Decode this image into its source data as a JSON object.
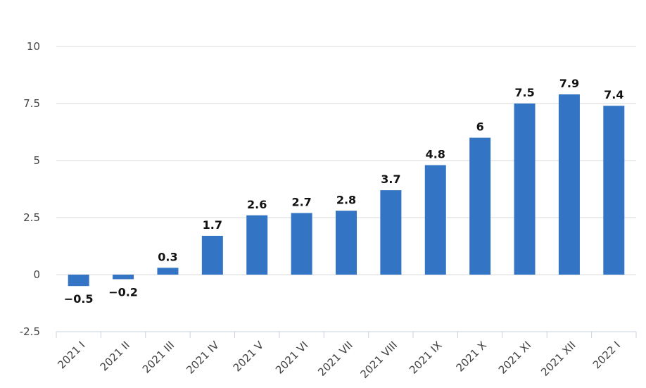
{
  "chart_data": {
    "type": "bar",
    "categories": [
      "2021 I",
      "2021 II",
      "2021 III",
      "2021 IV",
      "2021 V",
      "2021 VI",
      "2021 VII",
      "2021 VIII",
      "2021 IX",
      "2021 X",
      "2021 XI",
      "2021 XII",
      "2022 I"
    ],
    "values": [
      -0.5,
      -0.2,
      0.3,
      1.7,
      2.6,
      2.7,
      2.8,
      3.7,
      4.8,
      6,
      7.5,
      7.9,
      7.4
    ],
    "data_labels": [
      "−0.5",
      "−0.2",
      "0.3",
      "1.7",
      "2.6",
      "2.7",
      "2.8",
      "3.7",
      "4.8",
      "6",
      "7.5",
      "7.9",
      "7.4"
    ],
    "y_ticks": [
      10,
      7.5,
      5,
      2.5,
      0,
      -2.5
    ],
    "y_tick_labels": [
      "10",
      "7.5",
      "5",
      "2.5",
      "0",
      "-2.5"
    ],
    "ylim": [
      -2.5,
      10
    ],
    "grid": true,
    "bar_color": "#3375c4",
    "title": "",
    "xlabel": "",
    "ylabel": ""
  }
}
